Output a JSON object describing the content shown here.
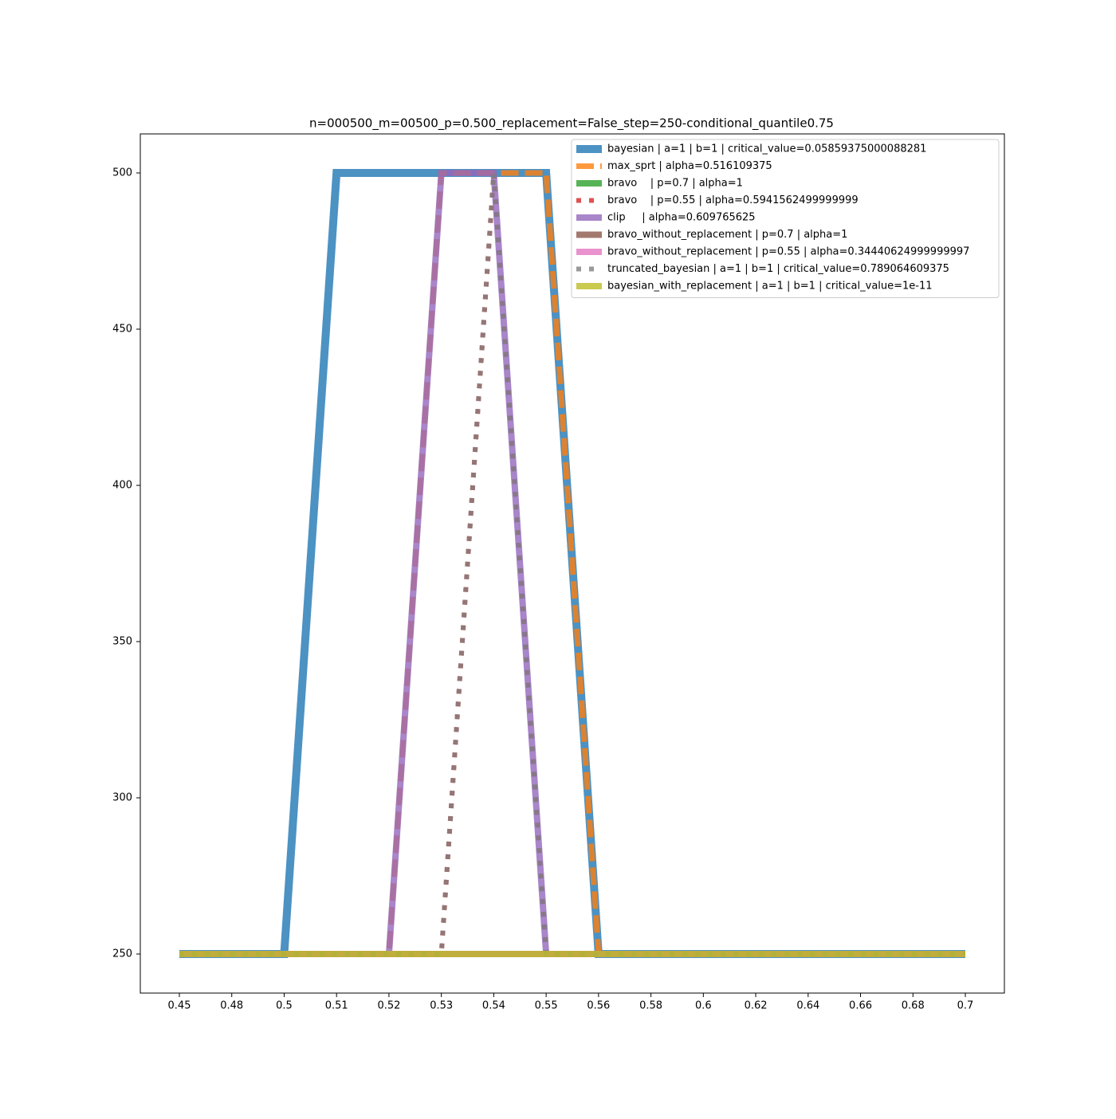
{
  "chart_data": {
    "type": "line",
    "title": "n=000500_m=00500_p=0.500_replacement=False_step=250-conditional_quantile0.75",
    "categories": [
      "0.45",
      "0.48",
      "0.5",
      "0.51",
      "0.52",
      "0.53",
      "0.54",
      "0.55",
      "0.56",
      "0.58",
      "0.6",
      "0.62",
      "0.64",
      "0.66",
      "0.68",
      "0.7"
    ],
    "ylim": [
      237.5,
      512.5
    ],
    "yticks": [
      250,
      300,
      350,
      400,
      450,
      500
    ],
    "legend": "upper right",
    "series": [
      {
        "name": "bayesian | a=1 | b=1 | critical_value=0.05859375000088281",
        "color": "#1f77b4",
        "linestyle": "solid",
        "values": [
          250,
          250,
          250,
          500,
          500,
          500,
          500,
          500,
          250,
          250,
          250,
          250,
          250,
          250,
          250,
          250
        ]
      },
      {
        "name": "max_sprt | alpha=0.516109375",
        "color": "#ff7f0e",
        "linestyle": "dashed",
        "values": [
          250,
          250,
          250,
          250,
          250,
          500,
          500,
          500,
          250,
          250,
          250,
          250,
          250,
          250,
          250,
          250
        ]
      },
      {
        "name": "bravo    | p=0.7 | alpha=1",
        "color": "#2ca02c",
        "linestyle": "solid",
        "values": [
          250,
          250,
          250,
          250,
          250,
          250,
          250,
          250,
          250,
          250,
          250,
          250,
          250,
          250,
          250,
          250
        ]
      },
      {
        "name": "bravo    | p=0.55 | alpha=0.5941562499999999",
        "color": "#d62728",
        "linestyle": "dotted",
        "values": [
          250,
          250,
          250,
          250,
          250,
          250,
          500,
          250,
          250,
          250,
          250,
          250,
          250,
          250,
          250,
          250
        ]
      },
      {
        "name": "clip     | alpha=0.609765625",
        "color": "#9467bd",
        "linestyle": "solid",
        "values": [
          250,
          250,
          250,
          250,
          250,
          500,
          500,
          250,
          250,
          250,
          250,
          250,
          250,
          250,
          250,
          250
        ]
      },
      {
        "name": "bravo_without_replacement | p=0.7 | alpha=1",
        "color": "#8c564b",
        "linestyle": "solid",
        "values": [
          250,
          250,
          250,
          250,
          250,
          250,
          250,
          250,
          250,
          250,
          250,
          250,
          250,
          250,
          250,
          250
        ]
      },
      {
        "name": "bravo_without_replacement | p=0.55 | alpha=0.34440624999999997",
        "color": "#e377c2",
        "linestyle": "solid",
        "values": [
          250,
          250,
          250,
          250,
          250,
          250,
          250,
          250,
          250,
          250,
          250,
          250,
          250,
          250,
          250,
          250
        ]
      },
      {
        "name": "truncated_bayesian | a=1 | b=1 | critical_value=0.789064609375",
        "color": "#7f7f7f",
        "linestyle": "dotted",
        "values": [
          250,
          250,
          250,
          250,
          250,
          250,
          500,
          250,
          250,
          250,
          250,
          250,
          250,
          250,
          250,
          250
        ]
      },
      {
        "name": "bayesian_with_replacement | a=1 | b=1 | critical_value=1e-11",
        "color": "#bcbd22",
        "linestyle": "solid",
        "values": [
          250,
          250,
          250,
          250,
          250,
          250,
          250,
          250,
          250,
          250,
          250,
          250,
          250,
          250,
          250,
          250
        ]
      }
    ]
  }
}
